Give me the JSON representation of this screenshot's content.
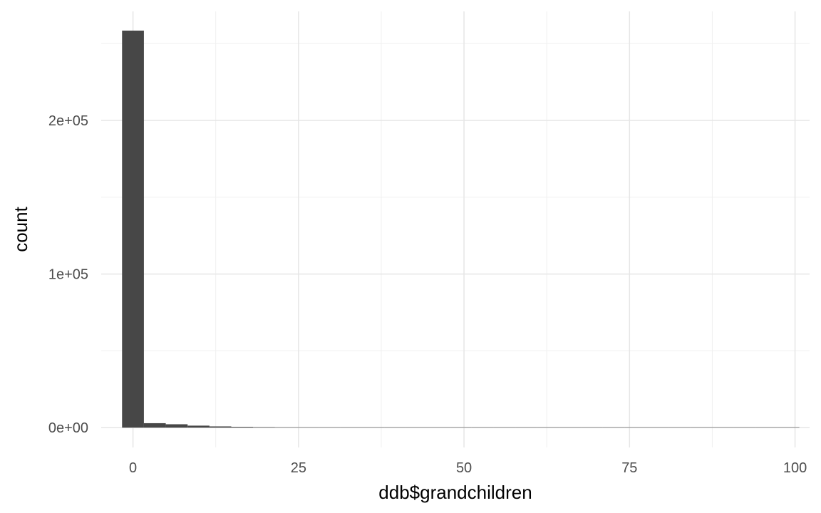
{
  "chart_data": {
    "type": "bar",
    "title": "",
    "xlabel": "ddb$grandchildren",
    "ylabel": "count",
    "xlim": [
      -4.8,
      102.2
    ],
    "ylim": [
      -12900,
      271000
    ],
    "x_ticks": [
      0,
      25,
      50,
      75,
      100
    ],
    "x_tick_labels": [
      "0",
      "25",
      "50",
      "75",
      "100"
    ],
    "x_minor_ticks": [
      12.5,
      37.5,
      62.5,
      87.5
    ],
    "y_ticks": [
      0,
      100000,
      200000
    ],
    "y_tick_labels": [
      "0e+00",
      "1e+05",
      "2e+05"
    ],
    "y_minor_ticks": [
      50000,
      150000,
      250000
    ],
    "grid": true,
    "bar_color": "#474747",
    "bin_width": 3.3,
    "bins": [
      {
        "x": 0.0,
        "count": 258500
      },
      {
        "x": 3.3,
        "count": 2900
      },
      {
        "x": 6.6,
        "count": 2200
      },
      {
        "x": 9.9,
        "count": 1300
      },
      {
        "x": 13.2,
        "count": 800
      },
      {
        "x": 16.5,
        "count": 500
      },
      {
        "x": 19.8,
        "count": 350
      },
      {
        "x": 23.1,
        "count": 250
      },
      {
        "x": 26.4,
        "count": 150
      },
      {
        "x": 29.7,
        "count": 100
      },
      {
        "x": 33.0,
        "count": 80
      },
      {
        "x": 36.3,
        "count": 60
      },
      {
        "x": 39.6,
        "count": 40
      },
      {
        "x": 42.9,
        "count": 30
      },
      {
        "x": 46.2,
        "count": 20
      },
      {
        "x": 49.5,
        "count": 10
      },
      {
        "x": 52.8,
        "count": 8
      },
      {
        "x": 56.1,
        "count": 5
      },
      {
        "x": 59.4,
        "count": 3
      },
      {
        "x": 62.7,
        "count": 2
      },
      {
        "x": 66.0,
        "count": 2
      },
      {
        "x": 69.3,
        "count": 1
      },
      {
        "x": 72.6,
        "count": 1
      },
      {
        "x": 75.9,
        "count": 1
      },
      {
        "x": 79.2,
        "count": 0
      },
      {
        "x": 82.5,
        "count": 1
      },
      {
        "x": 85.8,
        "count": 0
      },
      {
        "x": 89.1,
        "count": 0
      },
      {
        "x": 92.4,
        "count": 0
      },
      {
        "x": 95.7,
        "count": 0
      },
      {
        "x": 99.0,
        "count": 1
      }
    ]
  }
}
